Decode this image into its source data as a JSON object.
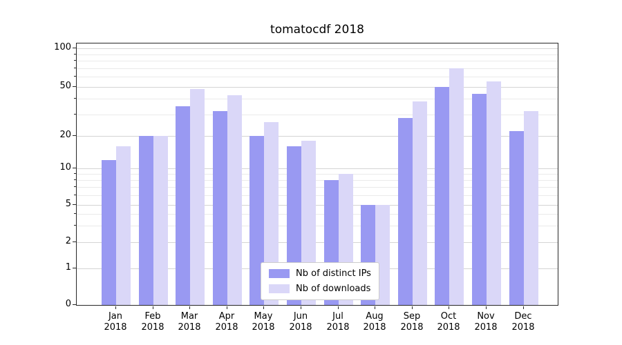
{
  "chart_data": {
    "type": "bar",
    "title": "tomatocdf 2018",
    "categories": [
      "Jan",
      "Feb",
      "Mar",
      "Apr",
      "May",
      "Jun",
      "Jul",
      "Aug",
      "Sep",
      "Oct",
      "Nov",
      "Dec"
    ],
    "category_year": "2018",
    "series": [
      {
        "name": "Nb of distinct IPs",
        "color": "#9999f2",
        "values": [
          12,
          20,
          35,
          32,
          20,
          16,
          8,
          5,
          28,
          50,
          44,
          22
        ]
      },
      {
        "name": "Nb of downloads",
        "color": "#dad7f8",
        "values": [
          16,
          20,
          48,
          43,
          26,
          18,
          9,
          5,
          38,
          70,
          55,
          32
        ]
      }
    ],
    "yaxis": {
      "scale": "symlog",
      "ticks": [
        0,
        1,
        2,
        5,
        10,
        20,
        50,
        100
      ],
      "minor_ticks": [
        3,
        4,
        6,
        7,
        8,
        9,
        30,
        40,
        60,
        70,
        80,
        90
      ],
      "ylim": [
        0,
        115
      ]
    },
    "grid": "horizontal",
    "legend_position": "lower center"
  },
  "colors": {
    "grid_major": "#d4d4d4",
    "grid_minor": "#eaeaea",
    "spine": "#262626",
    "text": "#000000",
    "legend_border": "#cccccc",
    "background": "#ffffff"
  }
}
